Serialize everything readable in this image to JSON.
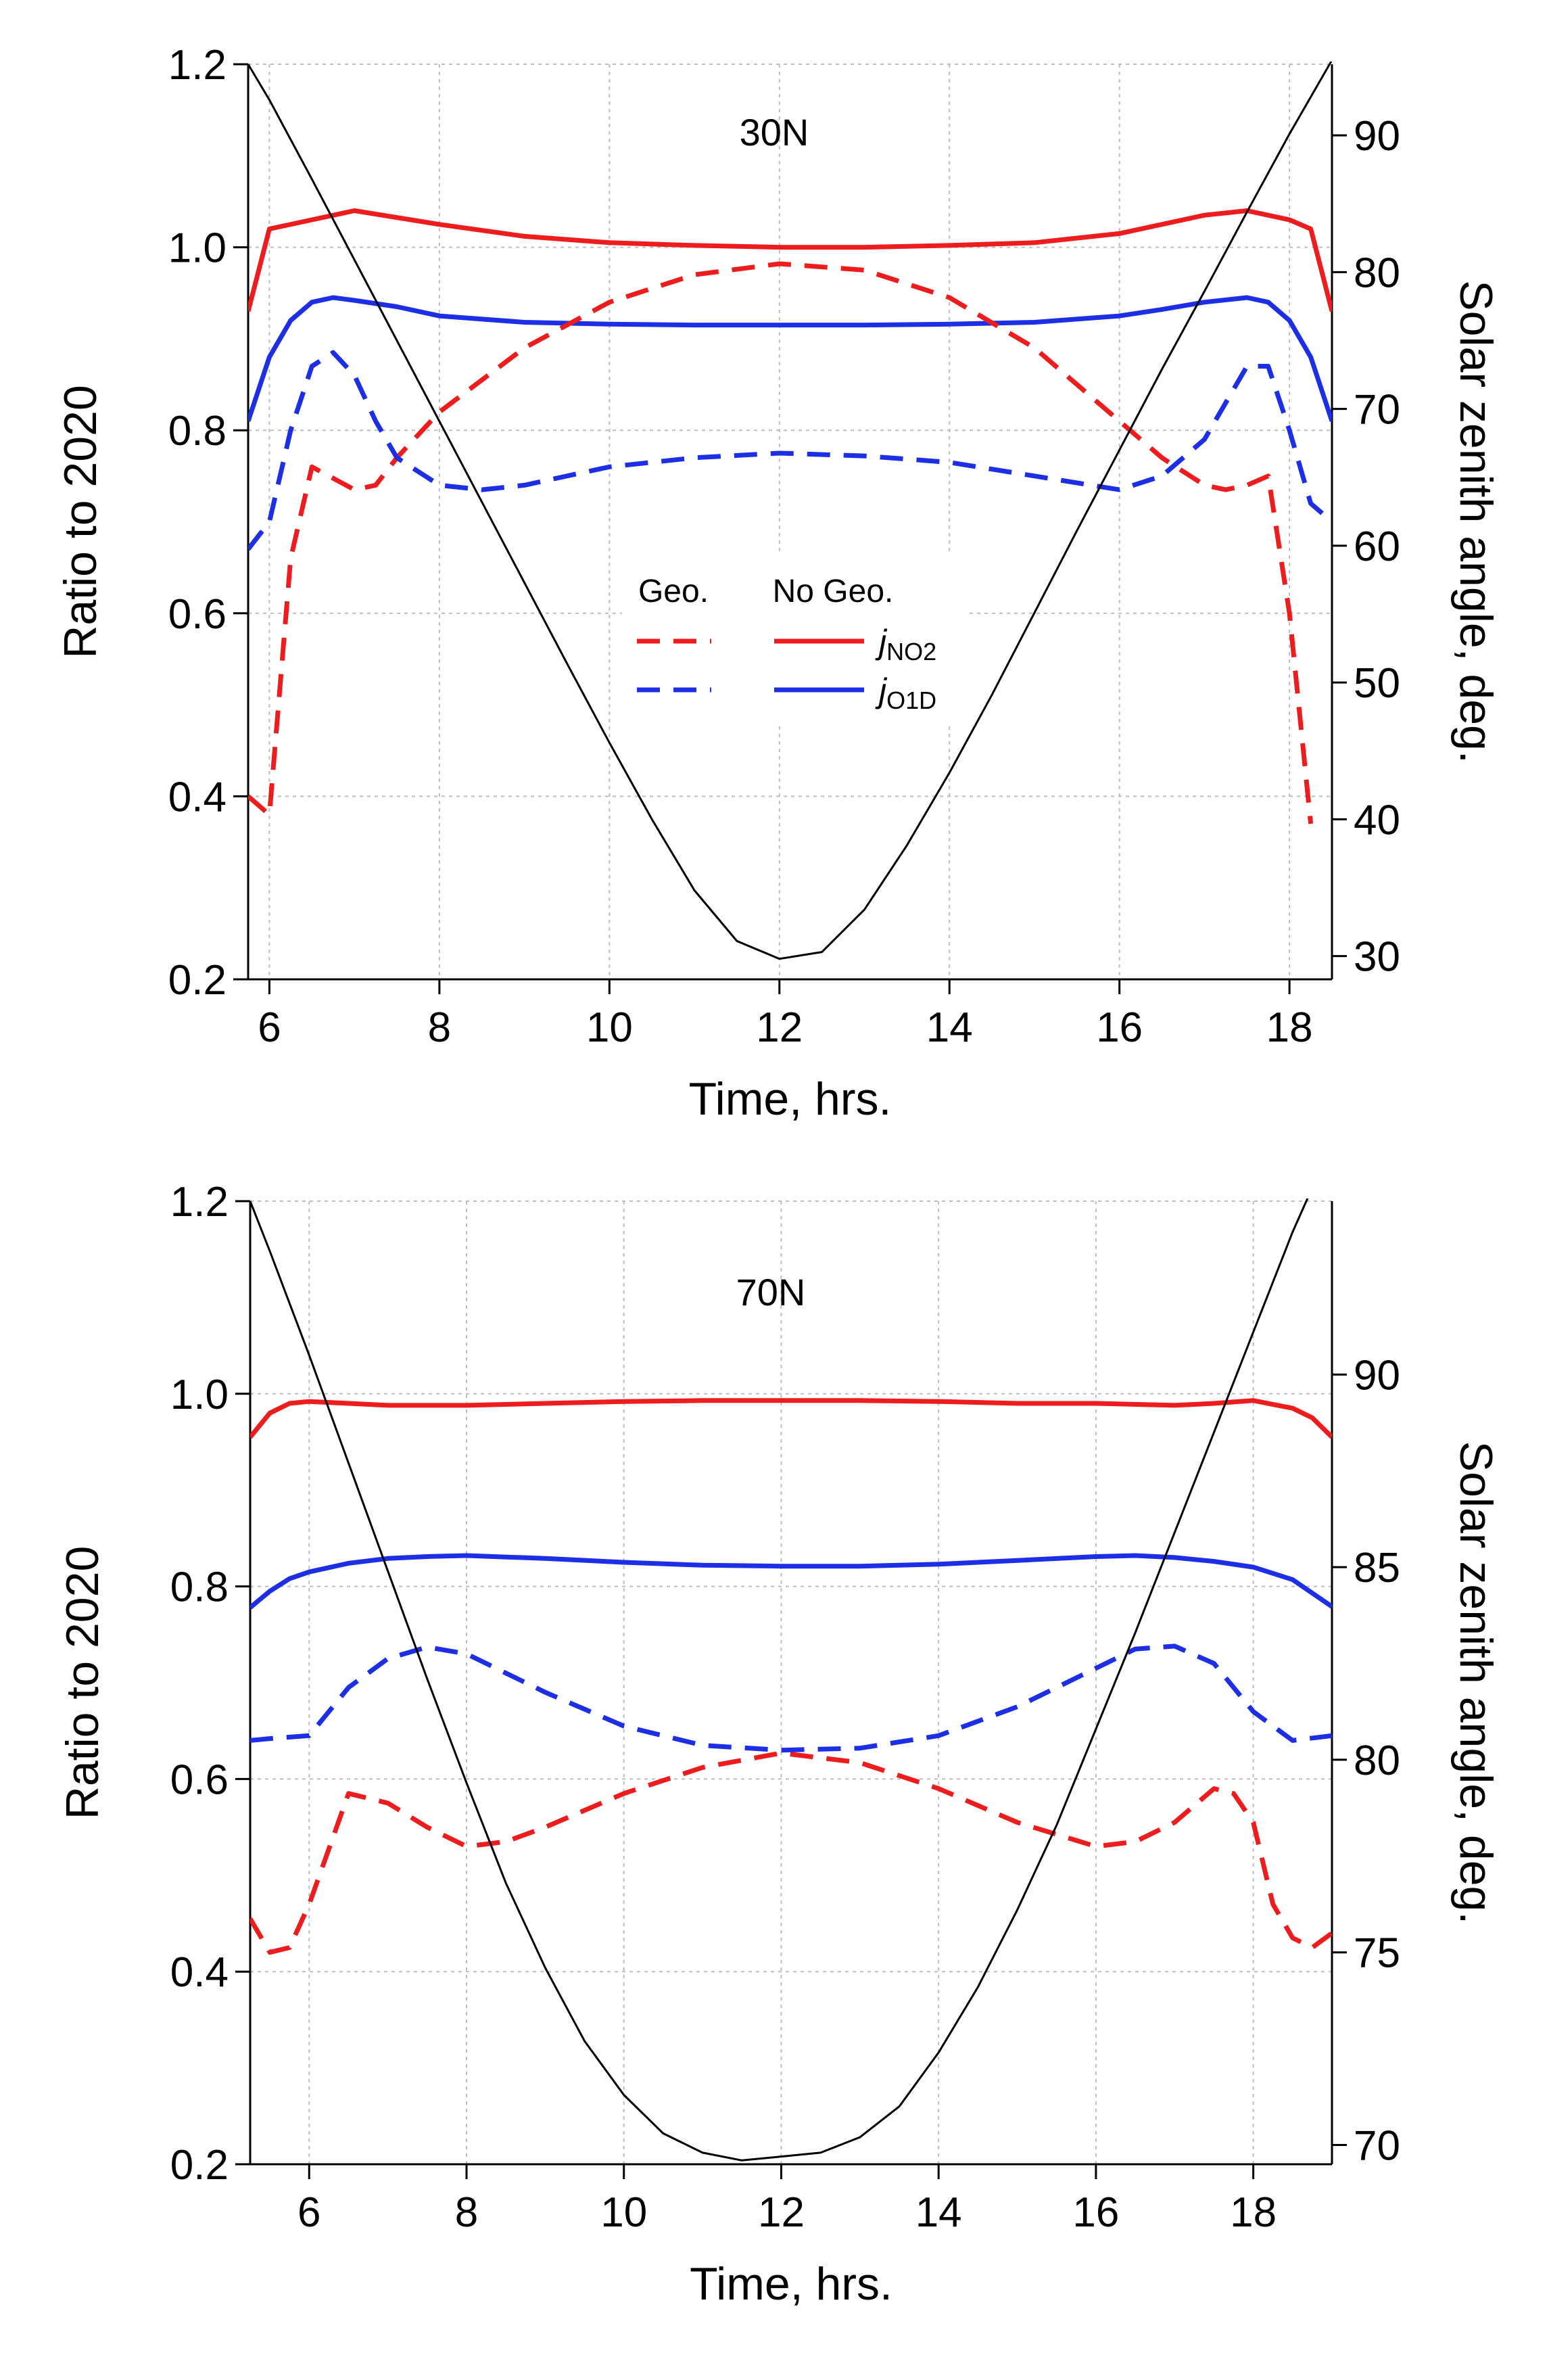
{
  "legend": {
    "header_geo": "Geo.",
    "header_nogeo": "No Geo.",
    "entries": [
      {
        "symbol": "j",
        "subscript": "NO2",
        "color": "#ee1c1c"
      },
      {
        "symbol": "j",
        "subscript": "O1D",
        "color": "#1c2ee6"
      }
    ]
  },
  "colors": {
    "no2": "#ee1c1c",
    "o1d": "#1c2ee6",
    "sza": "#000000",
    "grid": "#bdbdbd"
  },
  "chart_data": [
    {
      "type": "line",
      "panel_label": "30N",
      "xlabel": "Time, hrs.",
      "ylabel": "Ratio to 2020",
      "y2label": "Solar zenith angle, deg.",
      "xlim": [
        5.75,
        18.5
      ],
      "ylim": [
        0.2,
        1.2
      ],
      "y2lim": [
        28.3,
        95.2
      ],
      "xticks": [
        6,
        8,
        10,
        12,
        14,
        16,
        18
      ],
      "yticks": [
        0.2,
        0.4,
        0.6,
        0.8,
        1.0,
        1.2
      ],
      "y2ticks": [
        30,
        40,
        50,
        60,
        70,
        80,
        90
      ],
      "grid": true,
      "legend_position": "center",
      "series": [
        {
          "key": "no2_nogeo",
          "color": "#ee1c1c",
          "dash": false,
          "axis": "left",
          "x": [
            5.75,
            6.0,
            6.5,
            7.0,
            8.0,
            9.0,
            10.0,
            11.0,
            12.0,
            13.0,
            14.0,
            15.0,
            16.0,
            17.0,
            17.5,
            18.0,
            18.25,
            18.5
          ],
          "y": [
            0.93,
            1.02,
            1.03,
            1.04,
            1.025,
            1.012,
            1.005,
            1.002,
            1.0,
            1.0,
            1.002,
            1.005,
            1.015,
            1.035,
            1.04,
            1.03,
            1.02,
            0.93
          ]
        },
        {
          "key": "o1d_nogeo",
          "color": "#1c2ee6",
          "dash": false,
          "axis": "left",
          "x": [
            5.75,
            6.0,
            6.25,
            6.5,
            6.75,
            7.0,
            7.5,
            8.0,
            9.0,
            10.0,
            11.0,
            12.0,
            13.0,
            14.0,
            15.0,
            16.0,
            16.5,
            17.0,
            17.5,
            17.75,
            18.0,
            18.25,
            18.5
          ],
          "y": [
            0.81,
            0.88,
            0.92,
            0.94,
            0.945,
            0.942,
            0.935,
            0.925,
            0.918,
            0.916,
            0.915,
            0.915,
            0.915,
            0.916,
            0.918,
            0.925,
            0.932,
            0.94,
            0.945,
            0.94,
            0.92,
            0.88,
            0.81
          ]
        },
        {
          "key": "no2_geo",
          "color": "#ee1c1c",
          "dash": true,
          "axis": "left",
          "x": [
            5.75,
            6.0,
            6.25,
            6.5,
            7.0,
            7.25,
            7.5,
            8.0,
            9.0,
            10.0,
            11.0,
            12.0,
            13.0,
            14.0,
            15.0,
            16.0,
            16.5,
            17.0,
            17.25,
            17.5,
            17.75,
            18.0,
            18.25
          ],
          "y": [
            0.4,
            0.38,
            0.66,
            0.76,
            0.735,
            0.74,
            0.77,
            0.82,
            0.89,
            0.94,
            0.97,
            0.982,
            0.975,
            0.945,
            0.89,
            0.81,
            0.77,
            0.74,
            0.735,
            0.74,
            0.75,
            0.6,
            0.37
          ]
        },
        {
          "key": "o1d_geo",
          "color": "#1c2ee6",
          "dash": true,
          "axis": "left",
          "x": [
            5.75,
            6.0,
            6.25,
            6.5,
            6.75,
            7.0,
            7.25,
            7.5,
            8.0,
            8.5,
            9.0,
            10.0,
            11.0,
            12.0,
            13.0,
            14.0,
            15.0,
            16.0,
            16.5,
            17.0,
            17.25,
            17.5,
            17.75,
            18.0,
            18.25,
            18.5
          ],
          "y": [
            0.67,
            0.7,
            0.8,
            0.87,
            0.885,
            0.86,
            0.81,
            0.77,
            0.74,
            0.735,
            0.74,
            0.76,
            0.77,
            0.775,
            0.772,
            0.765,
            0.75,
            0.735,
            0.75,
            0.79,
            0.83,
            0.87,
            0.87,
            0.8,
            0.72,
            0.7
          ]
        },
        {
          "key": "sza",
          "color": "#000000",
          "dash": false,
          "axis": "right",
          "thin": true,
          "x": [
            5.75,
            6.0,
            6.5,
            7.0,
            7.5,
            8.0,
            8.5,
            9.0,
            9.5,
            10.0,
            10.5,
            11.0,
            11.5,
            12.0,
            12.5,
            13.0,
            13.5,
            14.0,
            14.5,
            15.0,
            15.5,
            16.0,
            16.5,
            17.0,
            17.5,
            18.0,
            18.5
          ],
          "y": [
            95.2,
            92.6,
            86.8,
            80.9,
            75.0,
            69.1,
            63.2,
            57.3,
            51.4,
            45.6,
            40.0,
            34.8,
            31.1,
            29.8,
            30.3,
            33.4,
            38.1,
            43.4,
            49.1,
            55.1,
            61.1,
            67.0,
            72.9,
            78.6,
            84.4,
            90.1,
            95.5
          ]
        }
      ]
    },
    {
      "type": "line",
      "panel_label": "70N",
      "xlabel": "Time, hrs.",
      "ylabel": "Ratio to 2020",
      "y2label": "Solar zenith angle, deg.",
      "xlim": [
        5.25,
        19.0
      ],
      "ylim": [
        0.2,
        1.2
      ],
      "y2lim": [
        69.5,
        94.5
      ],
      "xticks": [
        6,
        8,
        10,
        12,
        14,
        16,
        18
      ],
      "yticks": [
        0.2,
        0.4,
        0.6,
        0.8,
        1.0,
        1.2
      ],
      "y2ticks": [
        70,
        75,
        80,
        85,
        90
      ],
      "grid": true,
      "series": [
        {
          "key": "no2_nogeo",
          "color": "#ee1c1c",
          "dash": false,
          "axis": "left",
          "x": [
            5.25,
            5.5,
            5.75,
            6.0,
            6.5,
            7.0,
            8.0,
            9.0,
            10.0,
            11.0,
            12.0,
            13.0,
            14.0,
            15.0,
            16.0,
            17.0,
            17.5,
            18.0,
            18.5,
            18.75,
            19.0
          ],
          "y": [
            0.955,
            0.98,
            0.99,
            0.992,
            0.99,
            0.988,
            0.988,
            0.99,
            0.992,
            0.993,
            0.993,
            0.993,
            0.992,
            0.99,
            0.99,
            0.988,
            0.99,
            0.993,
            0.985,
            0.975,
            0.955
          ]
        },
        {
          "key": "o1d_nogeo",
          "color": "#1c2ee6",
          "dash": false,
          "axis": "left",
          "x": [
            5.25,
            5.5,
            5.75,
            6.0,
            6.5,
            7.0,
            7.5,
            8.0,
            9.0,
            10.0,
            11.0,
            12.0,
            13.0,
            14.0,
            15.0,
            16.0,
            16.5,
            17.0,
            17.5,
            18.0,
            18.5,
            19.0
          ],
          "y": [
            0.778,
            0.795,
            0.808,
            0.815,
            0.824,
            0.829,
            0.831,
            0.832,
            0.829,
            0.825,
            0.822,
            0.821,
            0.821,
            0.823,
            0.827,
            0.831,
            0.832,
            0.83,
            0.826,
            0.82,
            0.807,
            0.779
          ]
        },
        {
          "key": "o1d_geo",
          "color": "#1c2ee6",
          "dash": true,
          "axis": "left",
          "x": [
            5.25,
            5.5,
            6.0,
            6.5,
            7.0,
            7.5,
            8.0,
            8.5,
            9.0,
            10.0,
            11.0,
            12.0,
            13.0,
            14.0,
            15.0,
            16.0,
            16.5,
            17.0,
            17.5,
            18.0,
            18.25,
            18.5,
            19.0
          ],
          "y": [
            0.64,
            0.642,
            0.645,
            0.695,
            0.725,
            0.737,
            0.73,
            0.71,
            0.69,
            0.655,
            0.635,
            0.63,
            0.632,
            0.645,
            0.675,
            0.715,
            0.735,
            0.738,
            0.72,
            0.67,
            0.655,
            0.64,
            0.645
          ]
        },
        {
          "key": "no2_geo",
          "color": "#ee1c1c",
          "dash": true,
          "axis": "left",
          "x": [
            5.25,
            5.5,
            5.75,
            6.0,
            6.5,
            7.0,
            7.5,
            8.0,
            8.5,
            9.0,
            10.0,
            11.0,
            12.0,
            13.0,
            14.0,
            15.0,
            16.0,
            16.5,
            17.0,
            17.5,
            17.75,
            18.0,
            18.25,
            18.5,
            18.75,
            19.0
          ],
          "y": [
            0.455,
            0.42,
            0.425,
            0.47,
            0.585,
            0.575,
            0.55,
            0.53,
            0.535,
            0.55,
            0.585,
            0.612,
            0.627,
            0.617,
            0.59,
            0.555,
            0.53,
            0.535,
            0.555,
            0.59,
            0.585,
            0.555,
            0.47,
            0.435,
            0.425,
            0.44
          ]
        },
        {
          "key": "sza",
          "color": "#000000",
          "dash": false,
          "axis": "right",
          "thin": true,
          "x": [
            5.25,
            5.5,
            6.0,
            6.5,
            7.0,
            7.5,
            8.0,
            8.5,
            9.0,
            9.5,
            10.0,
            10.5,
            11.0,
            11.5,
            12.0,
            12.5,
            13.0,
            13.5,
            14.0,
            14.5,
            15.0,
            15.5,
            16.0,
            16.5,
            17.0,
            17.5,
            18.0,
            18.5,
            19.0
          ],
          "y": [
            94.5,
            93.2,
            90.5,
            87.7,
            84.9,
            82.1,
            79.4,
            76.8,
            74.6,
            72.7,
            71.3,
            70.3,
            69.8,
            69.6,
            69.7,
            69.8,
            70.2,
            71.0,
            72.4,
            74.1,
            76.1,
            78.3,
            80.8,
            83.3,
            85.9,
            88.5,
            91.1,
            93.7,
            96.0
          ]
        }
      ]
    }
  ]
}
